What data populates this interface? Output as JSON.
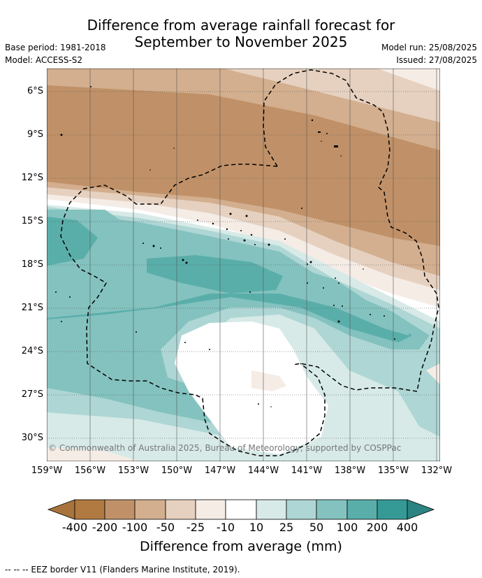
{
  "title_line1": "Difference from average rainfall forecast for",
  "title_line2": "September to November 2025",
  "base_period": "Base period: 1981-2018",
  "model": "Model: ACCESS-S2",
  "model_run": "Model run: 25/08/2025",
  "issued": "Issued: 27/08/2025",
  "lat_ticks": [
    "6°S",
    "9°S",
    "12°S",
    "15°S",
    "18°S",
    "21°S",
    "24°S",
    "27°S",
    "30°S"
  ],
  "lon_ticks": [
    "159°W",
    "156°W",
    "153°W",
    "150°W",
    "147°W",
    "144°W",
    "141°W",
    "138°W",
    "135°W",
    "132°W"
  ],
  "copyright": "© Commonwealth of Australia 2025, Bureau of Meteorology, supported by COSPPac",
  "colorbar": {
    "title": "Difference from average (mm)",
    "labels": [
      "-400",
      "-200",
      "-100",
      "-50",
      "-25",
      "-10",
      "10",
      "25",
      "50",
      "100",
      "200",
      "400"
    ],
    "colors": [
      "#a8733d",
      "#b17a41",
      "#c09168",
      "#d3af8f",
      "#e6d1c0",
      "#f5ece6",
      "#ffffff",
      "#d7eae8",
      "#aed6d4",
      "#83c2bf",
      "#5aaeaa",
      "#359a96",
      "#2b8481"
    ]
  },
  "footer": "-- -- -- EEZ border V11 (Flanders Marine Institute, 2019)."
}
